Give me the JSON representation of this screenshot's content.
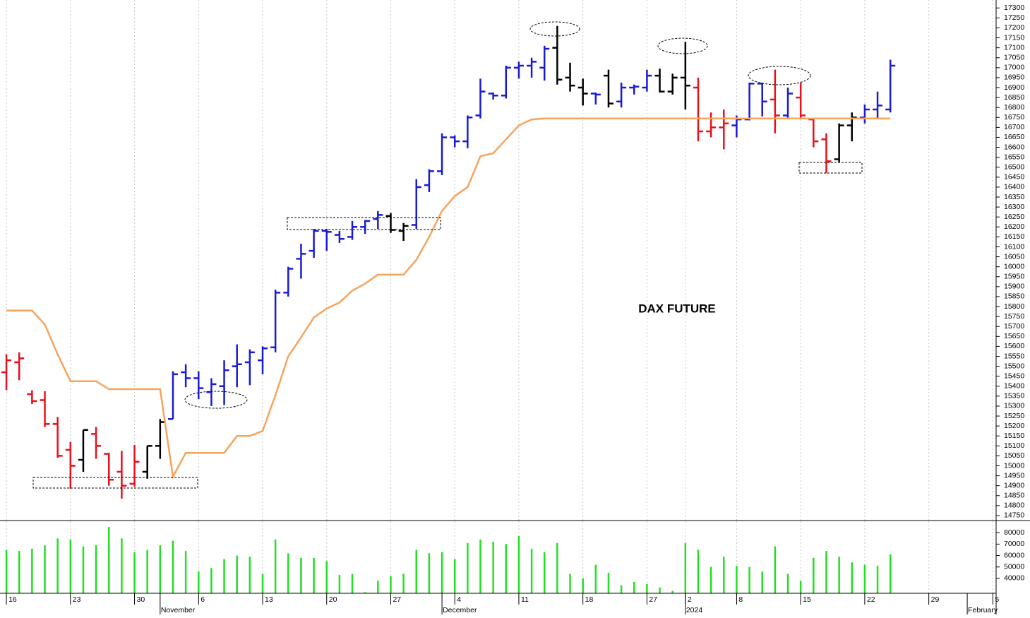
{
  "chart_data": [
    {
      "type": "ohlc",
      "title": "DAX FUTURE",
      "open": [
        15470,
        15520,
        15360,
        15330,
        15210,
        15080,
        15030,
        15160,
        15060,
        14970,
        14910,
        14970,
        15100,
        15235,
        15470,
        15440,
        15370,
        15400,
        15500,
        15520,
        15530,
        15595,
        15870,
        16040,
        16080,
        16180,
        16160,
        16150,
        16200,
        16240,
        16255,
        16180,
        16210,
        16410,
        16480,
        16650,
        16630,
        16760,
        16870,
        16860,
        17000,
        17010,
        17000,
        17100,
        16950,
        16900,
        16870,
        16960,
        16830,
        16900,
        16900,
        16960,
        16880,
        16950,
        16900,
        16680,
        16700,
        16710,
        16740,
        16920,
        16840,
        16760,
        16850,
        16740,
        16640,
        16540,
        16710,
        16750,
        16790,
        16790
      ],
      "high": [
        15560,
        15570,
        15380,
        15375,
        15245,
        15120,
        15180,
        15195,
        15065,
        15075,
        15105,
        15100,
        15235,
        15475,
        15510,
        15475,
        15440,
        15530,
        15610,
        15585,
        15600,
        15885,
        16000,
        16115,
        16190,
        16190,
        16180,
        16230,
        16235,
        16280,
        16270,
        16220,
        16440,
        16490,
        16670,
        16660,
        16760,
        16945,
        16875,
        17010,
        17030,
        17050,
        17110,
        17210,
        17025,
        16945,
        16875,
        16990,
        16925,
        16915,
        16990,
        16995,
        16970,
        17130,
        16950,
        16775,
        16790,
        16760,
        16925,
        16925,
        16990,
        16900,
        16925,
        16740,
        16670,
        16720,
        16775,
        16815,
        16880,
        17040
      ],
      "low": [
        15380,
        15430,
        15310,
        15195,
        15040,
        14885,
        14970,
        15035,
        14900,
        14835,
        14895,
        14935,
        15035,
        15235,
        15395,
        15335,
        15300,
        15305,
        15395,
        15405,
        15460,
        15570,
        15850,
        15940,
        16045,
        16080,
        16120,
        16135,
        16165,
        16190,
        16170,
        16130,
        16190,
        16375,
        16460,
        16600,
        16595,
        16745,
        16840,
        16845,
        16945,
        16950,
        16935,
        16915,
        16880,
        16810,
        16815,
        16800,
        16800,
        16865,
        16880,
        16875,
        16865,
        16790,
        16630,
        16650,
        16590,
        16650,
        16735,
        16755,
        16670,
        16740,
        16740,
        16600,
        16470,
        16525,
        16630,
        16720,
        16740,
        16775
      ],
      "close": [
        15530,
        15540,
        15325,
        15210,
        15050,
        15000,
        15180,
        15100,
        14930,
        14900,
        15020,
        15100,
        15220,
        15460,
        15440,
        15390,
        15410,
        15480,
        15510,
        15570,
        15590,
        15870,
        15990,
        16065,
        16180,
        16175,
        16140,
        16200,
        16230,
        16260,
        16185,
        16205,
        16400,
        16480,
        16650,
        16630,
        16750,
        16880,
        16860,
        17000,
        17010,
        17030,
        17095,
        16940,
        16910,
        16870,
        16865,
        16820,
        16900,
        16905,
        16960,
        16880,
        16950,
        16910,
        16680,
        16700,
        16720,
        16740,
        16920,
        16830,
        16760,
        16870,
        16760,
        16630,
        16530,
        16710,
        16750,
        16790,
        16810,
        17010
      ],
      "bar_colors": [
        "#e8101a",
        "#e8101a",
        "#e8101a",
        "#e8101a",
        "#e8101a",
        "#e8101a",
        "#000000",
        "#e8101a",
        "#e8101a",
        "#e8101a",
        "#e8101a",
        "#000000",
        "#000000",
        "#1a1ad6",
        "#1a1ad6",
        "#1a1ad6",
        "#1a1ad6",
        "#1a1ad6",
        "#1a1ad6",
        "#1a1ad6",
        "#1a1ad6",
        "#1a1ad6",
        "#1a1ad6",
        "#1a1ad6",
        "#1a1ad6",
        "#1a1ad6",
        "#1a1ad6",
        "#1a1ad6",
        "#1a1ad6",
        "#1a1ad6",
        "#000000",
        "#000000",
        "#1a1ad6",
        "#1a1ad6",
        "#1a1ad6",
        "#1a1ad6",
        "#1a1ad6",
        "#1a1ad6",
        "#1a1ad6",
        "#1a1ad6",
        "#1a1ad6",
        "#1a1ad6",
        "#1a1ad6",
        "#000000",
        "#000000",
        "#000000",
        "#1a1ad6",
        "#000000",
        "#1a1ad6",
        "#1a1ad6",
        "#1a1ad6",
        "#000000",
        "#000000",
        "#000000",
        "#e8101a",
        "#e8101a",
        "#e8101a",
        "#1a1ad6",
        "#1a1ad6",
        "#1a1ad6",
        "#e8101a",
        "#1a1ad6",
        "#e8101a",
        "#e8101a",
        "#e8101a",
        "#000000",
        "#000000",
        "#1a1ad6",
        "#1a1ad6",
        "#1a1ad6"
      ],
      "series": [
        {
          "type": "line",
          "color": "#f7a35c",
          "values": [
            15780,
            15780,
            15780,
            15710,
            15560,
            15425,
            15425,
            15425,
            15385,
            15385,
            15385,
            15385,
            15385,
            14945,
            15065,
            15065,
            15065,
            15065,
            15150,
            15150,
            15175,
            15355,
            15550,
            15645,
            15745,
            15790,
            15820,
            15880,
            15915,
            15960,
            15960,
            15960,
            16035,
            16150,
            16280,
            16355,
            16400,
            16555,
            16570,
            16640,
            16710,
            16740,
            16745,
            16745,
            16745,
            16745,
            16745,
            16745,
            16745,
            16745,
            16745,
            16745,
            16745,
            16745,
            16745,
            16745,
            16745,
            16745,
            16745,
            16745,
            16745,
            16745,
            16745,
            16745,
            16745,
            16745,
            16745,
            16745,
            16745,
            16745
          ]
        }
      ],
      "xlim": [
        -0.5,
        77.2
      ],
      "xticks": [
        {
          "value": 0,
          "label": "16"
        },
        {
          "value": 5,
          "label": "23"
        },
        {
          "value": 10,
          "label": "30"
        },
        {
          "value": 15,
          "label": "6"
        },
        {
          "value": 20,
          "label": "13"
        },
        {
          "value": 25,
          "label": "20"
        },
        {
          "value": 30,
          "label": "27"
        },
        {
          "value": 35,
          "label": "4"
        },
        {
          "value": 40,
          "label": "11"
        },
        {
          "value": 45,
          "label": "18"
        },
        {
          "value": 50,
          "label": "27"
        },
        {
          "value": 53,
          "label": "2"
        },
        {
          "value": 57,
          "label": "8"
        },
        {
          "value": 62,
          "label": "15"
        },
        {
          "value": 67,
          "label": "22"
        },
        {
          "value": 72,
          "label": "29"
        },
        {
          "value": 77,
          "label": "5"
        }
      ],
      "month_ticks": [
        {
          "value": 12,
          "label": "November"
        },
        {
          "value": 34,
          "label": "December"
        },
        {
          "value": 53,
          "label": "2024"
        },
        {
          "value": 75,
          "label": "February"
        }
      ],
      "ylim": [
        14725,
        17340
      ],
      "yticks": [
        14750,
        14800,
        14850,
        14900,
        14950,
        15000,
        15050,
        15100,
        15150,
        15200,
        15250,
        15300,
        15350,
        15400,
        15450,
        15500,
        15550,
        15600,
        15650,
        15700,
        15750,
        15800,
        15850,
        15900,
        15950,
        16000,
        16050,
        16100,
        16150,
        16200,
        16250,
        16300,
        16350,
        16400,
        16450,
        16500,
        16550,
        16600,
        16650,
        16700,
        16750,
        16800,
        16850,
        16900,
        16950,
        17000,
        17050,
        17100,
        17150,
        17200,
        17250,
        17300
      ],
      "grid": true
    },
    {
      "type": "bar",
      "color": "#22e022",
      "values": [
        65000,
        64000,
        66000,
        69000,
        75000,
        74000,
        68000,
        69000,
        85000,
        75000,
        63000,
        65000,
        69000,
        73000,
        64000,
        46000,
        49000,
        57000,
        60000,
        59000,
        44000,
        74000,
        62000,
        58000,
        58000,
        55000,
        43000,
        44000,
        28000,
        38000,
        42000,
        44000,
        65000,
        62000,
        63000,
        57000,
        71000,
        74000,
        72000,
        70000,
        77000,
        66000,
        63000,
        71000,
        44000,
        40000,
        52000,
        45000,
        34000,
        37000,
        35000,
        32000,
        29000,
        71000,
        65000,
        50000,
        59000,
        51000,
        50000,
        46000,
        68000,
        44000,
        38000,
        58000,
        64000,
        59000,
        54000,
        52000,
        51000,
        61000
      ],
      "xlim": [
        -0.5,
        77.2
      ],
      "ylim": [
        27000,
        90000
      ],
      "yticks": [
        40000,
        50000,
        60000,
        70000,
        80000
      ],
      "grid": true
    }
  ]
}
